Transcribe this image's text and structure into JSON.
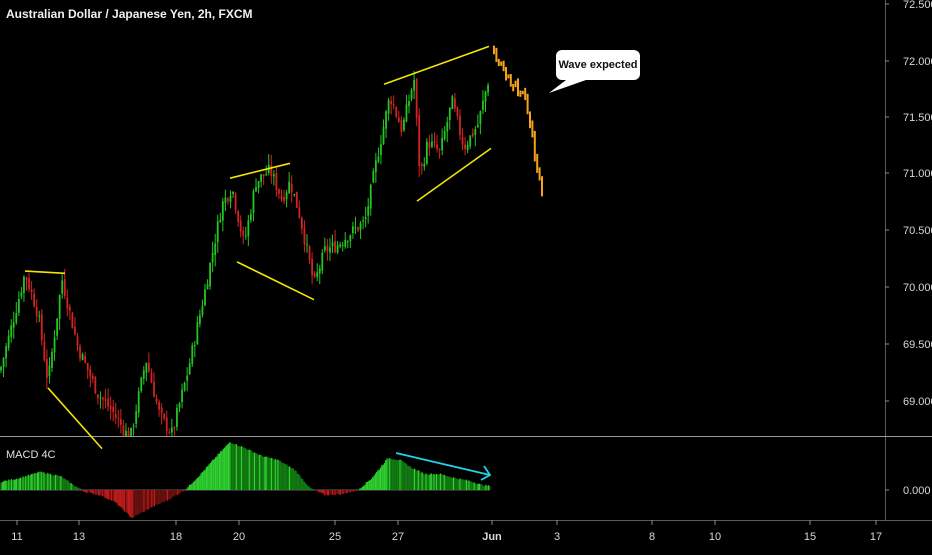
{
  "chart": {
    "title": "Australian Dollar / Japanese Yen, 2h, FXCM",
    "indicator_title": "MACD 4C",
    "callout_text": "Wave expected"
  },
  "colors": {
    "background": "#000000",
    "up_candle": "#22c722",
    "down_candle": "#d62222",
    "trendline": "#f2e600",
    "projection": "#f7a21b",
    "macd_divergence": "#22d3e6",
    "macd_pos_rising": "#2fd32f",
    "macd_pos_falling": "#137d13",
    "macd_neg_falling": "#c21b1b",
    "macd_neg_rising": "#6b1010",
    "axis_text": "#d8d8d8"
  },
  "chart_data": [
    {
      "type": "candlestick",
      "title": "Australian Dollar / Japanese Yen, 2h, FXCM",
      "y_ticks": [
        "72.500",
        "72.000",
        "71.500",
        "71.000",
        "70.500",
        "70.000",
        "69.500",
        "69.000"
      ],
      "ylim": [
        68.6,
        72.55
      ],
      "x_ticks": [
        "11",
        "13",
        "18",
        "20",
        "25",
        "27",
        "Jun",
        "3",
        "8",
        "10",
        "15",
        "17"
      ],
      "price_path": [
        [
          0,
          69.3
        ],
        [
          12,
          69.7
        ],
        [
          25,
          70.15
        ],
        [
          38,
          69.8
        ],
        [
          48,
          69.2
        ],
        [
          62,
          70.1
        ],
        [
          78,
          69.5
        ],
        [
          98,
          69.1
        ],
        [
          112,
          68.95
        ],
        [
          130,
          68.7
        ],
        [
          146,
          69.4
        ],
        [
          160,
          68.9
        ],
        [
          172,
          68.75
        ],
        [
          188,
          69.3
        ],
        [
          205,
          70.0
        ],
        [
          222,
          70.75
        ],
        [
          232,
          70.9
        ],
        [
          244,
          70.4
        ],
        [
          256,
          70.95
        ],
        [
          270,
          71.05
        ],
        [
          282,
          70.8
        ],
        [
          290,
          70.95
        ],
        [
          300,
          70.65
        ],
        [
          314,
          70.05
        ],
        [
          325,
          70.35
        ],
        [
          338,
          70.4
        ],
        [
          350,
          70.5
        ],
        [
          365,
          70.6
        ],
        [
          378,
          71.2
        ],
        [
          390,
          71.7
        ],
        [
          402,
          71.4
        ],
        [
          414,
          71.85
        ],
        [
          420,
          71.0
        ],
        [
          428,
          71.3
        ],
        [
          440,
          71.2
        ],
        [
          452,
          71.65
        ],
        [
          464,
          71.25
        ],
        [
          478,
          71.45
        ],
        [
          490,
          71.9
        ]
      ],
      "projection_path": [
        [
          494,
          72.1
        ],
        [
          498,
          72.0
        ],
        [
          502,
          71.95
        ],
        [
          506,
          71.85
        ],
        [
          508,
          71.9
        ],
        [
          512,
          71.75
        ],
        [
          516,
          71.8
        ],
        [
          520,
          71.7
        ],
        [
          524,
          71.75
        ],
        [
          528,
          71.55
        ],
        [
          532,
          71.4
        ],
        [
          534,
          71.2
        ],
        [
          536,
          71.05
        ],
        [
          540,
          70.95
        ],
        [
          542,
          70.85
        ]
      ],
      "trendlines": [
        [
          [
            25,
            70.17
          ],
          [
            65,
            70.15
          ]
        ],
        [
          [
            48,
            69.15
          ],
          [
            102,
            68.62
          ]
        ],
        [
          [
            230,
            70.98
          ],
          [
            290,
            71.11
          ]
        ],
        [
          [
            237,
            70.25
          ],
          [
            314,
            69.92
          ]
        ],
        [
          [
            384,
            71.8
          ],
          [
            489,
            72.13
          ]
        ],
        [
          [
            417,
            70.78
          ],
          [
            491,
            71.24
          ]
        ]
      ]
    },
    {
      "type": "histogram",
      "title": "MACD 4C",
      "y_ticks": [
        "0.000"
      ],
      "macd_path": [
        [
          0,
          0.08
        ],
        [
          20,
          0.12
        ],
        [
          40,
          0.18
        ],
        [
          60,
          0.14
        ],
        [
          72,
          0.06
        ],
        [
          85,
          -0.02
        ],
        [
          100,
          -0.05
        ],
        [
          115,
          -0.12
        ],
        [
          132,
          -0.28
        ],
        [
          150,
          -0.18
        ],
        [
          168,
          -0.1
        ],
        [
          185,
          0.0
        ],
        [
          200,
          0.15
        ],
        [
          215,
          0.32
        ],
        [
          230,
          0.48
        ],
        [
          245,
          0.42
        ],
        [
          262,
          0.34
        ],
        [
          278,
          0.3
        ],
        [
          295,
          0.2
        ],
        [
          310,
          0.02
        ],
        [
          325,
          -0.05
        ],
        [
          342,
          -0.04
        ],
        [
          358,
          0.0
        ],
        [
          372,
          0.12
        ],
        [
          388,
          0.32
        ],
        [
          400,
          0.3
        ],
        [
          412,
          0.22
        ],
        [
          425,
          0.16
        ],
        [
          440,
          0.16
        ],
        [
          455,
          0.12
        ],
        [
          470,
          0.09
        ],
        [
          482,
          0.05
        ],
        [
          490,
          0.04
        ]
      ],
      "divergence_line": [
        [
          396,
          0.37
        ],
        [
          490,
          0.15
        ]
      ]
    }
  ]
}
